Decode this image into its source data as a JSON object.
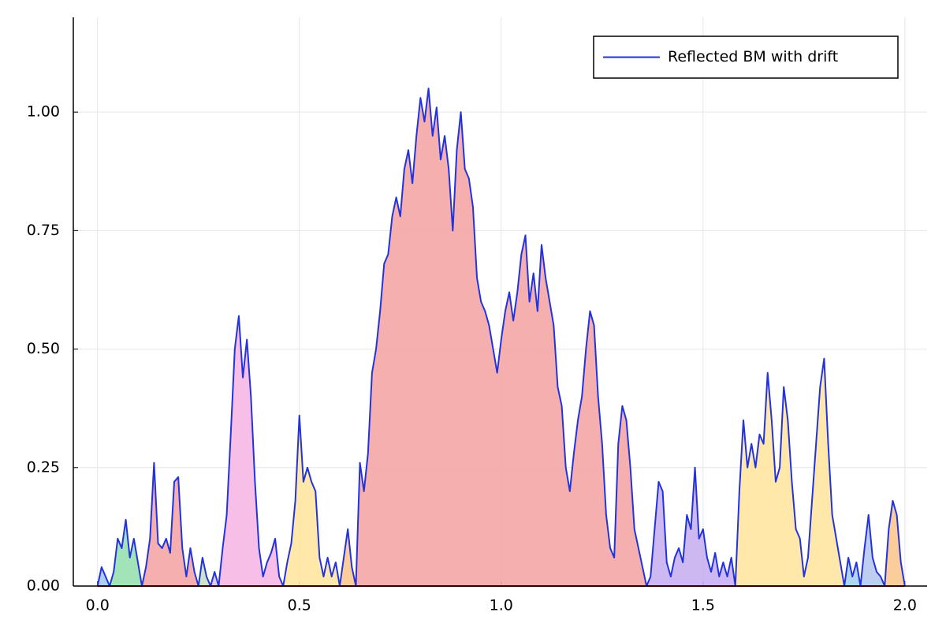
{
  "chart_data": {
    "type": "line",
    "x": [
      0,
      0.01,
      0.02,
      0.03,
      0.04,
      0.05,
      0.06,
      0.07,
      0.08,
      0.09,
      0.1,
      0.11,
      0.12,
      0.13,
      0.14,
      0.15,
      0.16,
      0.17,
      0.18,
      0.19,
      0.2,
      0.21,
      0.22,
      0.23,
      0.24,
      0.25,
      0.26,
      0.27,
      0.28,
      0.29,
      0.3,
      0.31,
      0.32,
      0.33,
      0.34,
      0.35,
      0.36,
      0.37,
      0.38,
      0.39,
      0.4,
      0.41,
      0.42,
      0.43,
      0.44,
      0.45,
      0.46,
      0.47,
      0.48,
      0.49,
      0.5,
      0.51,
      0.52,
      0.53,
      0.54,
      0.55,
      0.56,
      0.57,
      0.58,
      0.59,
      0.6,
      0.61,
      0.62,
      0.63,
      0.64,
      0.65,
      0.66,
      0.67,
      0.68,
      0.69,
      0.7,
      0.71,
      0.72,
      0.73,
      0.74,
      0.75,
      0.76,
      0.77,
      0.78,
      0.79,
      0.8,
      0.81,
      0.82,
      0.83,
      0.84,
      0.85,
      0.86,
      0.87,
      0.88,
      0.89,
      0.9,
      0.91,
      0.92,
      0.93,
      0.94,
      0.95,
      0.96,
      0.97,
      0.98,
      0.99,
      1,
      1.01,
      1.02,
      1.03,
      1.04,
      1.05,
      1.06,
      1.07,
      1.08,
      1.09,
      1.1,
      1.11,
      1.12,
      1.13,
      1.14,
      1.15,
      1.16,
      1.17,
      1.18,
      1.19,
      1.2,
      1.21,
      1.22,
      1.23,
      1.24,
      1.25,
      1.26,
      1.27,
      1.28,
      1.29,
      1.3,
      1.31,
      1.32,
      1.33,
      1.34,
      1.35,
      1.36,
      1.37,
      1.38,
      1.39,
      1.4,
      1.41,
      1.42,
      1.43,
      1.44,
      1.45,
      1.46,
      1.47,
      1.48,
      1.49,
      1.5,
      1.51,
      1.52,
      1.53,
      1.54,
      1.55,
      1.56,
      1.57,
      1.58,
      1.59,
      1.6,
      1.61,
      1.62,
      1.63,
      1.64,
      1.65,
      1.66,
      1.67,
      1.68,
      1.69,
      1.7,
      1.71,
      1.72,
      1.73,
      1.74,
      1.75,
      1.76,
      1.77,
      1.78,
      1.79,
      1.8,
      1.81,
      1.82,
      1.83,
      1.84,
      1.85,
      1.86,
      1.87,
      1.88,
      1.89,
      1.9,
      1.91,
      1.92,
      1.93,
      1.94,
      1.95,
      1.96,
      1.97,
      1.98,
      1.99,
      2
    ],
    "series": [
      {
        "name": "Reflected BM with drift",
        "color": "#2233dd",
        "values": [
          0,
          0.04,
          0.02,
          0,
          0.03,
          0.1,
          0.08,
          0.14,
          0.06,
          0.1,
          0.05,
          0,
          0.04,
          0.1,
          0.26,
          0.09,
          0.08,
          0.1,
          0.07,
          0.22,
          0.23,
          0.08,
          0.02,
          0.08,
          0.03,
          0,
          0.06,
          0.02,
          0,
          0.03,
          0,
          0.08,
          0.15,
          0.32,
          0.5,
          0.57,
          0.44,
          0.52,
          0.4,
          0.22,
          0.08,
          0.02,
          0.05,
          0.07,
          0.1,
          0.02,
          0,
          0.05,
          0.09,
          0.18,
          0.36,
          0.22,
          0.25,
          0.22,
          0.2,
          0.06,
          0.02,
          0.06,
          0.02,
          0.05,
          0,
          0.06,
          0.12,
          0.04,
          0,
          0.26,
          0.2,
          0.28,
          0.45,
          0.5,
          0.58,
          0.68,
          0.7,
          0.78,
          0.82,
          0.78,
          0.88,
          0.92,
          0.85,
          0.95,
          1.03,
          0.98,
          1.05,
          0.95,
          1.01,
          0.9,
          0.95,
          0.88,
          0.75,
          0.92,
          1,
          0.88,
          0.86,
          0.8,
          0.65,
          0.6,
          0.58,
          0.55,
          0.5,
          0.45,
          0.52,
          0.58,
          0.62,
          0.56,
          0.62,
          0.7,
          0.74,
          0.6,
          0.66,
          0.58,
          0.72,
          0.65,
          0.6,
          0.55,
          0.42,
          0.38,
          0.25,
          0.2,
          0.28,
          0.35,
          0.4,
          0.5,
          0.58,
          0.55,
          0.4,
          0.3,
          0.15,
          0.08,
          0.06,
          0.3,
          0.38,
          0.35,
          0.25,
          0.12,
          0.08,
          0.04,
          0,
          0.02,
          0.12,
          0.22,
          0.2,
          0.05,
          0.02,
          0.06,
          0.08,
          0.05,
          0.15,
          0.12,
          0.25,
          0.1,
          0.12,
          0.06,
          0.03,
          0.07,
          0.02,
          0.05,
          0.02,
          0.06,
          0,
          0.2,
          0.35,
          0.25,
          0.3,
          0.25,
          0.32,
          0.3,
          0.45,
          0.35,
          0.22,
          0.25,
          0.42,
          0.35,
          0.22,
          0.12,
          0.1,
          0.02,
          0.06,
          0.18,
          0.3,
          0.42,
          0.48,
          0.3,
          0.15,
          0.1,
          0.05,
          0,
          0.06,
          0.02,
          0.05,
          0,
          0.08,
          0.15,
          0.06,
          0.03,
          0.02,
          0,
          0.12,
          0.18,
          0.15,
          0.05,
          0
        ]
      }
    ],
    "excursion_colors": [
      "#a8c8f0",
      "#98e0b0",
      "#f4a6a6",
      "#c8e0c0",
      "#d8c8f0",
      "#f6b8e4",
      "#ffe6a0",
      "#fbc890",
      "#f4a6a6",
      "#c8b0f0",
      "#ffe6a0",
      "#a8d0f0",
      "#b8c8f0",
      "#fbc890"
    ],
    "xlim": [
      -0.06,
      2.055
    ],
    "ylim": [
      0,
      1.2
    ],
    "xticks": [
      {
        "value": 0,
        "label": "0.0"
      },
      {
        "value": 0.5,
        "label": "0.5"
      },
      {
        "value": 1,
        "label": "1.0"
      },
      {
        "value": 1.5,
        "label": "1.5"
      },
      {
        "value": 2,
        "label": "2.0"
      }
    ],
    "yticks": [
      {
        "value": 0,
        "label": "0.00"
      },
      {
        "value": 0.25,
        "label": "0.25"
      },
      {
        "value": 0.5,
        "label": "0.50"
      },
      {
        "value": 0.75,
        "label": "0.75"
      },
      {
        "value": 1,
        "label": "1.00"
      }
    ],
    "grid": true,
    "legend": "upper-right"
  }
}
